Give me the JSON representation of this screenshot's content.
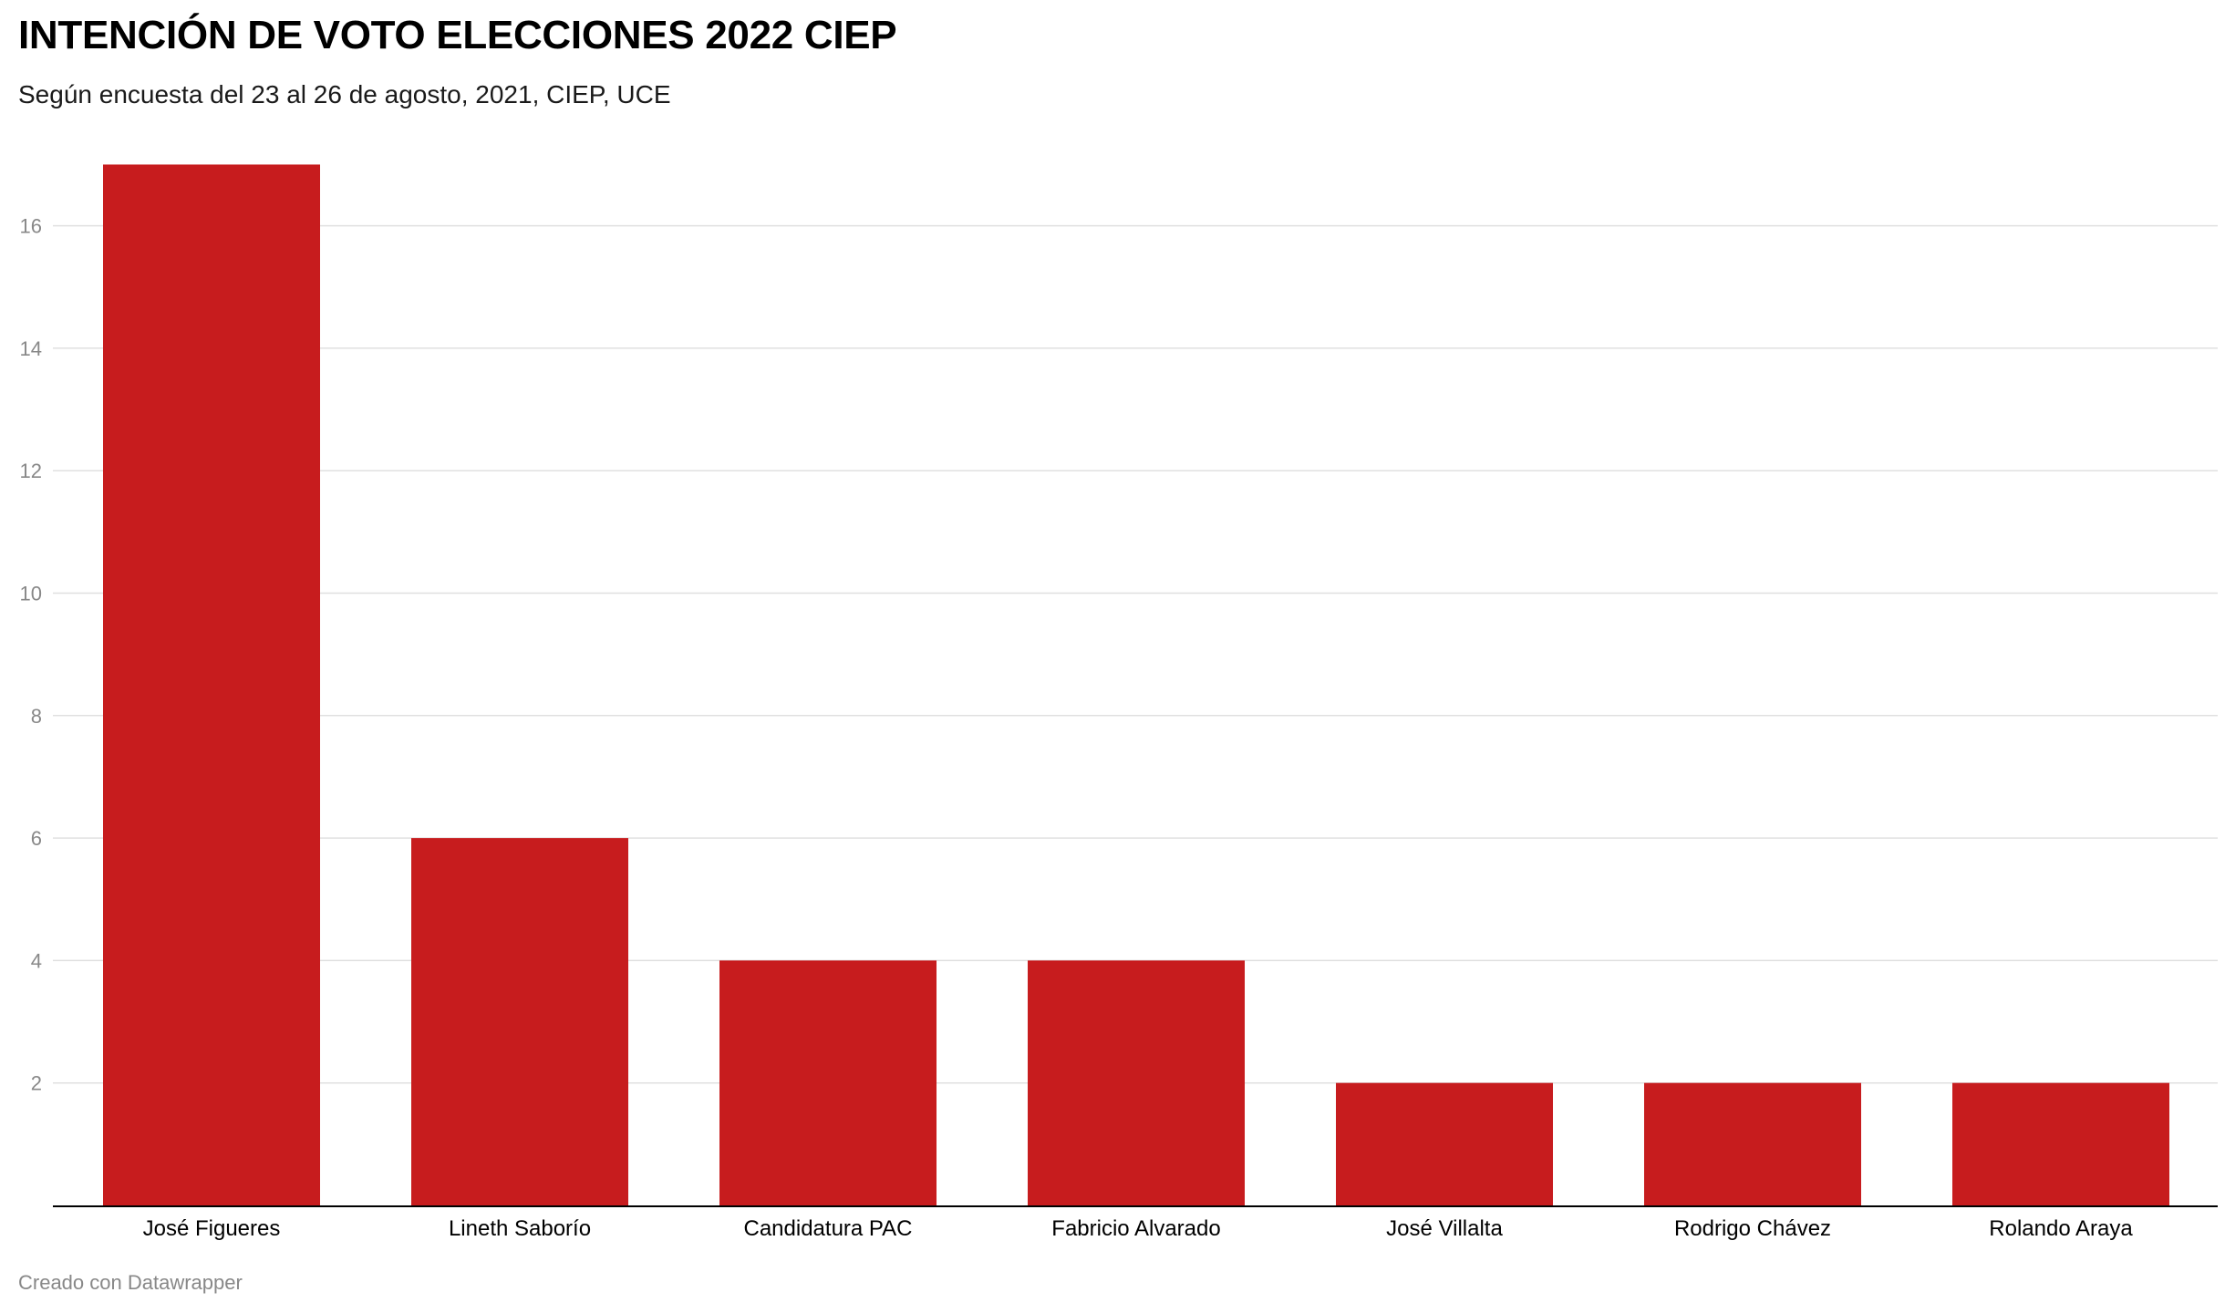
{
  "header": {
    "title": "INTENCIÓN DE VOTO ELECCIONES 2022 CIEP",
    "subtitle": "Según encuesta del 23 al 26 de agosto, 2021, CIEP, UCE"
  },
  "footer": {
    "credit": "Creado con Datawrapper"
  },
  "colors": {
    "bar": "#c71c1e",
    "grid": "#e0e0e0",
    "axis": "#000000",
    "tick_text": "#888888"
  },
  "chart_data": {
    "type": "bar",
    "title": "INTENCIÓN DE VOTO ELECCIONES 2022 CIEP",
    "subtitle": "Según encuesta del 23 al 26 de agosto, 2021, CIEP, UCE",
    "xlabel": "",
    "ylabel": "",
    "categories": [
      "José Figueres",
      "Lineth Saborío",
      "Candidatura PAC",
      "Fabricio Alvarado",
      "José Villalta",
      "Rodrigo Chávez",
      "Rolando Araya"
    ],
    "values": [
      17,
      6,
      4,
      4,
      2,
      2,
      2
    ],
    "ylim": [
      0,
      18
    ],
    "yticks": [
      2,
      4,
      6,
      8,
      10,
      12,
      14,
      16
    ],
    "grid": true,
    "legend": "none"
  }
}
